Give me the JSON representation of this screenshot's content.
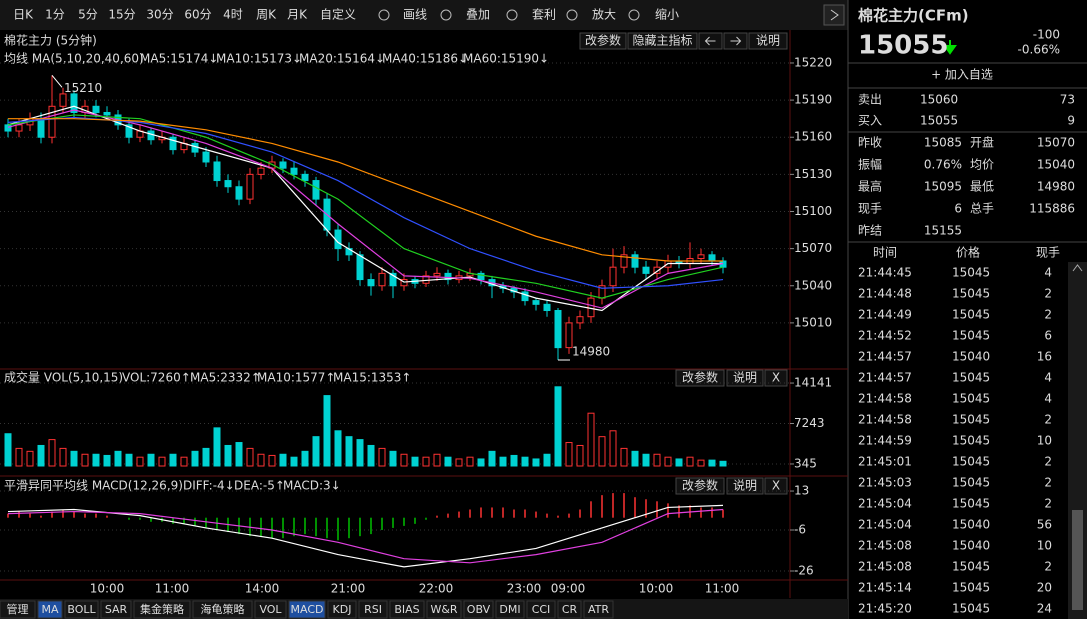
{
  "toolbar": {
    "items": [
      "日K",
      "1分",
      "5分",
      "15分",
      "30分",
      "60分",
      "4时",
      "周K",
      "月K",
      "自定义",
      "画线",
      "叠加",
      "套利",
      "放大",
      "缩小"
    ],
    "active": 2
  },
  "chart_data": {
    "type": "candlestick",
    "title": "棉花主力 (5分钟)",
    "buttons": [
      "改参数",
      "隐藏主指标",
      "说明"
    ],
    "ma_legend": [
      {
        "text": "均线 MA(5,10,20,40,60)",
        "color": "#ffffff"
      },
      {
        "text": "MA5:15174↓",
        "color": "#ffffff"
      },
      {
        "text": "MA10:15173↓",
        "color": "#e040e0"
      },
      {
        "text": "MA20:15164↓",
        "color": "#20d020"
      },
      {
        "text": "MA40:15186↓",
        "color": "#3050ff"
      },
      {
        "text": "MA60:15190↓",
        "color": "#ff8c00"
      }
    ],
    "open": [
      15170,
      15165,
      15170,
      15175,
      15160,
      15185,
      15195,
      15180,
      15185,
      15180,
      15178,
      15170,
      15160,
      15165,
      15158,
      15160,
      15150,
      15155,
      15148,
      15140,
      15125,
      15120,
      15110,
      15130,
      15135,
      15140,
      15135,
      15130,
      15125,
      15110,
      15085,
      15070,
      15065,
      15045,
      15040,
      15050,
      15040,
      15045,
      15042,
      15048,
      15050,
      15045,
      15048,
      15050,
      15045,
      15040,
      15038,
      15035,
      15028,
      15025,
      15020,
      14990,
      15010,
      15015,
      15030,
      15040,
      15055,
      15065,
      15055,
      15050,
      15055,
      15060,
      15058,
      15062,
      15065,
      15060
    ],
    "high": [
      15175,
      15175,
      15180,
      15180,
      15210,
      15200,
      15198,
      15190,
      15190,
      15185,
      15182,
      15175,
      15170,
      15168,
      15165,
      15163,
      15160,
      15158,
      15152,
      15145,
      15130,
      15125,
      15135,
      15140,
      15145,
      15143,
      15140,
      15133,
      15128,
      15115,
      15090,
      15075,
      15068,
      15050,
      15055,
      15053,
      15050,
      15048,
      15052,
      15055,
      15053,
      15052,
      15054,
      15052,
      15048,
      15043,
      15040,
      15038,
      15030,
      15028,
      15022,
      15015,
      15020,
      15035,
      15045,
      15070,
      15072,
      15068,
      15060,
      15060,
      15065,
      15064,
      15075,
      15070,
      15068,
      15063
    ],
    "low": [
      15160,
      15160,
      15165,
      15155,
      15155,
      15180,
      15175,
      15175,
      15176,
      15174,
      15166,
      15155,
      15156,
      15154,
      15155,
      15146,
      15147,
      15144,
      15136,
      15120,
      15115,
      15105,
      15106,
      15126,
      15131,
      15131,
      15126,
      15120,
      15105,
      15080,
      15060,
      15060,
      15040,
      15032,
      15036,
      15030,
      15036,
      15038,
      15039,
      15044,
      15041,
      15042,
      15044,
      15041,
      15030,
      15034,
      15030,
      15024,
      15020,
      15015,
      14980,
      14985,
      15005,
      15010,
      15025,
      15035,
      15050,
      15050,
      15045,
      15046,
      15050,
      15054,
      15054,
      15058,
      15056,
      15050
    ],
    "close": [
      15165,
      15170,
      15175,
      15160,
      15185,
      15195,
      15180,
      15185,
      15180,
      15178,
      15170,
      15160,
      15165,
      15158,
      15160,
      15150,
      15155,
      15148,
      15140,
      15125,
      15120,
      15110,
      15130,
      15135,
      15140,
      15135,
      15130,
      15125,
      15110,
      15085,
      15070,
      15065,
      15045,
      15040,
      15050,
      15040,
      15045,
      15042,
      15048,
      15050,
      15045,
      15048,
      15050,
      15045,
      15040,
      15038,
      15035,
      15028,
      15025,
      15020,
      14990,
      15010,
      15015,
      15030,
      15040,
      15055,
      15065,
      15055,
      15050,
      15055,
      15060,
      15058,
      15062,
      15065,
      15060,
      15055
    ],
    "up_color": "#ff3232",
    "down_color": "#00d2d2",
    "ylim": [
      14975,
      15230
    ],
    "yticks": [
      15220,
      15190,
      15160,
      15130,
      15100,
      15070,
      15040,
      15010
    ],
    "grid": true,
    "high_label": "15210",
    "low_label": "14980",
    "ma_index": [
      0,
      6,
      12,
      18,
      24,
      30,
      36,
      42,
      48,
      54,
      60,
      65
    ],
    "ma_series": [
      {
        "color": "#ffffff",
        "values": [
          15170,
          15185,
          15165,
          15150,
          15135,
          15075,
          15043,
          15047,
          15030,
          15020,
          15058,
          15058
        ]
      },
      {
        "color": "#e040e0",
        "values": [
          15168,
          15182,
          15170,
          15155,
          15135,
          15090,
          15048,
          15046,
          15035,
          15022,
          15050,
          15058
        ]
      },
      {
        "color": "#20d020",
        "values": [
          15170,
          15178,
          15175,
          15160,
          15138,
          15110,
          15070,
          15050,
          15042,
          15030,
          15045,
          15055
        ]
      },
      {
        "color": "#3050ff",
        "values": [
          15172,
          15176,
          15172,
          15163,
          15148,
          15125,
          15095,
          15070,
          15052,
          15038,
          15040,
          15045
        ]
      },
      {
        "color": "#ff8c00",
        "values": [
          15175,
          15175,
          15173,
          15166,
          15155,
          15140,
          15120,
          15100,
          15080,
          15065,
          15060,
          15060
        ]
      }
    ],
    "time_labels": [
      "10:00",
      "11:00",
      "14:00",
      "21:00",
      "22:00",
      "23:00",
      "09:00",
      "10:00",
      "11:00"
    ]
  },
  "volume": {
    "type": "bar",
    "legend": [
      {
        "text": "成交量 VOL(5,10,15)",
        "color": "#ffffff"
      },
      {
        "text": "VOL:7260↑",
        "color": "#ffffff"
      },
      {
        "text": "MA5:2332↑",
        "color": "#e040e0"
      },
      {
        "text": "MA10:1577↑",
        "color": "#20d020"
      },
      {
        "text": "MA15:1353↑",
        "color": "#3050ff"
      }
    ],
    "buttons": [
      "改参数",
      "说明",
      "X"
    ],
    "values": [
      5500,
      3000,
      2500,
      3500,
      4500,
      3000,
      2500,
      2000,
      2000,
      1800,
      2500,
      2000,
      1500,
      2000,
      1500,
      2000,
      1500,
      2500,
      3000,
      6500,
      3500,
      4000,
      3000,
      2000,
      1800,
      2000,
      1500,
      2500,
      5000,
      12000,
      6000,
      5000,
      4500,
      3500,
      3000,
      2500,
      2000,
      1500,
      1500,
      2000,
      1500,
      1200,
      1500,
      1200,
      2500,
      1500,
      1800,
      1500,
      1200,
      2000,
      13500,
      4000,
      3500,
      9000,
      5000,
      6000,
      3000,
      2500,
      2000,
      2000,
      1500,
      1200,
      1500,
      1000,
      1000,
      800
    ],
    "ylim": [
      0,
      15000
    ],
    "yticks": [
      345,
      7243,
      14141
    ]
  },
  "macd": {
    "type": "bar",
    "legend": [
      {
        "text": "平滑异同平均线 MACD(12,26,9)",
        "color": "#ffffff"
      },
      {
        "text": "DIFF:-4↓",
        "color": "#ffffff"
      },
      {
        "text": "DEA:-5↑",
        "color": "#e040e0"
      },
      {
        "text": "MACD:3↓",
        "color": "#e0e000"
      }
    ],
    "buttons": [
      "改参数",
      "说明",
      "X"
    ],
    "values": [
      2,
      3,
      2,
      1,
      3,
      4,
      3,
      2,
      2,
      1,
      0,
      -1,
      -1,
      -2,
      -2,
      -3,
      -3,
      -4,
      -5,
      -6,
      -7,
      -8,
      -9,
      -9,
      -10,
      -10,
      -9,
      -8,
      -9,
      -10,
      -11,
      -10,
      -9,
      -8,
      -6,
      -5,
      -4,
      -3,
      -1,
      1,
      2,
      3,
      4,
      5,
      5,
      5,
      4,
      4,
      3,
      2,
      1,
      2,
      4,
      8,
      11,
      12,
      12,
      10,
      9,
      8,
      7,
      6,
      6,
      5,
      5,
      4
    ],
    "pos_color": "#ff3232",
    "neg_color": "#00c000",
    "lines": [
      {
        "color": "#ffffff",
        "values": [
          3,
          4,
          1,
          -5,
          -10,
          -18,
          -24,
          -20,
          -15,
          -5,
          5,
          6
        ]
      },
      {
        "color": "#e040e0",
        "values": [
          2,
          3,
          2,
          -2,
          -6,
          -12,
          -20,
          -22,
          -18,
          -12,
          2,
          4
        ]
      }
    ],
    "ylim": [
      -28,
      16
    ],
    "yticks": [
      13,
      -6,
      -26
    ]
  },
  "bottom_tabs": {
    "items": [
      "管理",
      "MA",
      "BOLL",
      "SAR",
      "集金策略",
      "海龟策略",
      "VOL",
      "MACD",
      "KDJ",
      "RSI",
      "BIAS",
      "W&R",
      "OBV",
      "DMI",
      "CCI",
      "CR",
      "ATR"
    ],
    "active": [
      1,
      7
    ]
  },
  "quote": {
    "title": "棉花主力(CFm)",
    "price": "15055",
    "change": "-100",
    "change_pct": "-0.66%",
    "add": "+ 加入自选",
    "book": [
      [
        "卖出",
        "15060",
        "73"
      ],
      [
        "买入",
        "15055",
        "9"
      ]
    ],
    "stats": [
      [
        "昨收",
        "15085",
        "开盘",
        "15070"
      ],
      [
        "振幅",
        "0.76%",
        "均价",
        "15040"
      ],
      [
        "最高",
        "15095",
        "最低",
        "14980"
      ],
      [
        "现手",
        "6",
        "总手",
        "115886"
      ],
      [
        "昨结",
        "15155"
      ]
    ],
    "stat_colors": [
      [
        "#ffffff",
        "#00e000"
      ],
      [
        "#ff3232",
        "#00e000"
      ],
      [
        "#00e000",
        "#00e000"
      ],
      [
        "#ffd700",
        "#ffd700"
      ],
      [
        "#ffffff"
      ]
    ],
    "trades_header": [
      "时间",
      "价格",
      "现手"
    ],
    "trades": [
      [
        "21:44:45",
        "15045",
        "4"
      ],
      [
        "21:44:48",
        "15045",
        "2"
      ],
      [
        "21:44:49",
        "15045",
        "2"
      ],
      [
        "21:44:52",
        "15045",
        "6"
      ],
      [
        "21:44:57",
        "15040",
        "16"
      ],
      [
        "21:44:57",
        "15045",
        "4"
      ],
      [
        "21:44:58",
        "15045",
        "4"
      ],
      [
        "21:44:58",
        "15045",
        "2"
      ],
      [
        "21:44:59",
        "15045",
        "10"
      ],
      [
        "21:45:01",
        "15045",
        "2"
      ],
      [
        "21:45:03",
        "15045",
        "2"
      ],
      [
        "21:45:04",
        "15045",
        "2"
      ],
      [
        "21:45:04",
        "15040",
        "56"
      ],
      [
        "21:45:08",
        "15040",
        "10"
      ],
      [
        "21:45:08",
        "15045",
        "2"
      ],
      [
        "21:45:14",
        "15045",
        "20"
      ],
      [
        "21:45:20",
        "15045",
        "24"
      ]
    ],
    "trade_vol_colors": [
      "#00e000",
      "#ffffff",
      "#ffffff",
      "#ffffff",
      "#00e000",
      "#ff3232",
      "#ffffff",
      "#ffffff",
      "#ffffff",
      "#ffffff",
      "#ffffff",
      "#ffffff",
      "#00e000",
      "#ffffff",
      "#ff3232",
      "#ffffff",
      "#ffffff"
    ]
  }
}
